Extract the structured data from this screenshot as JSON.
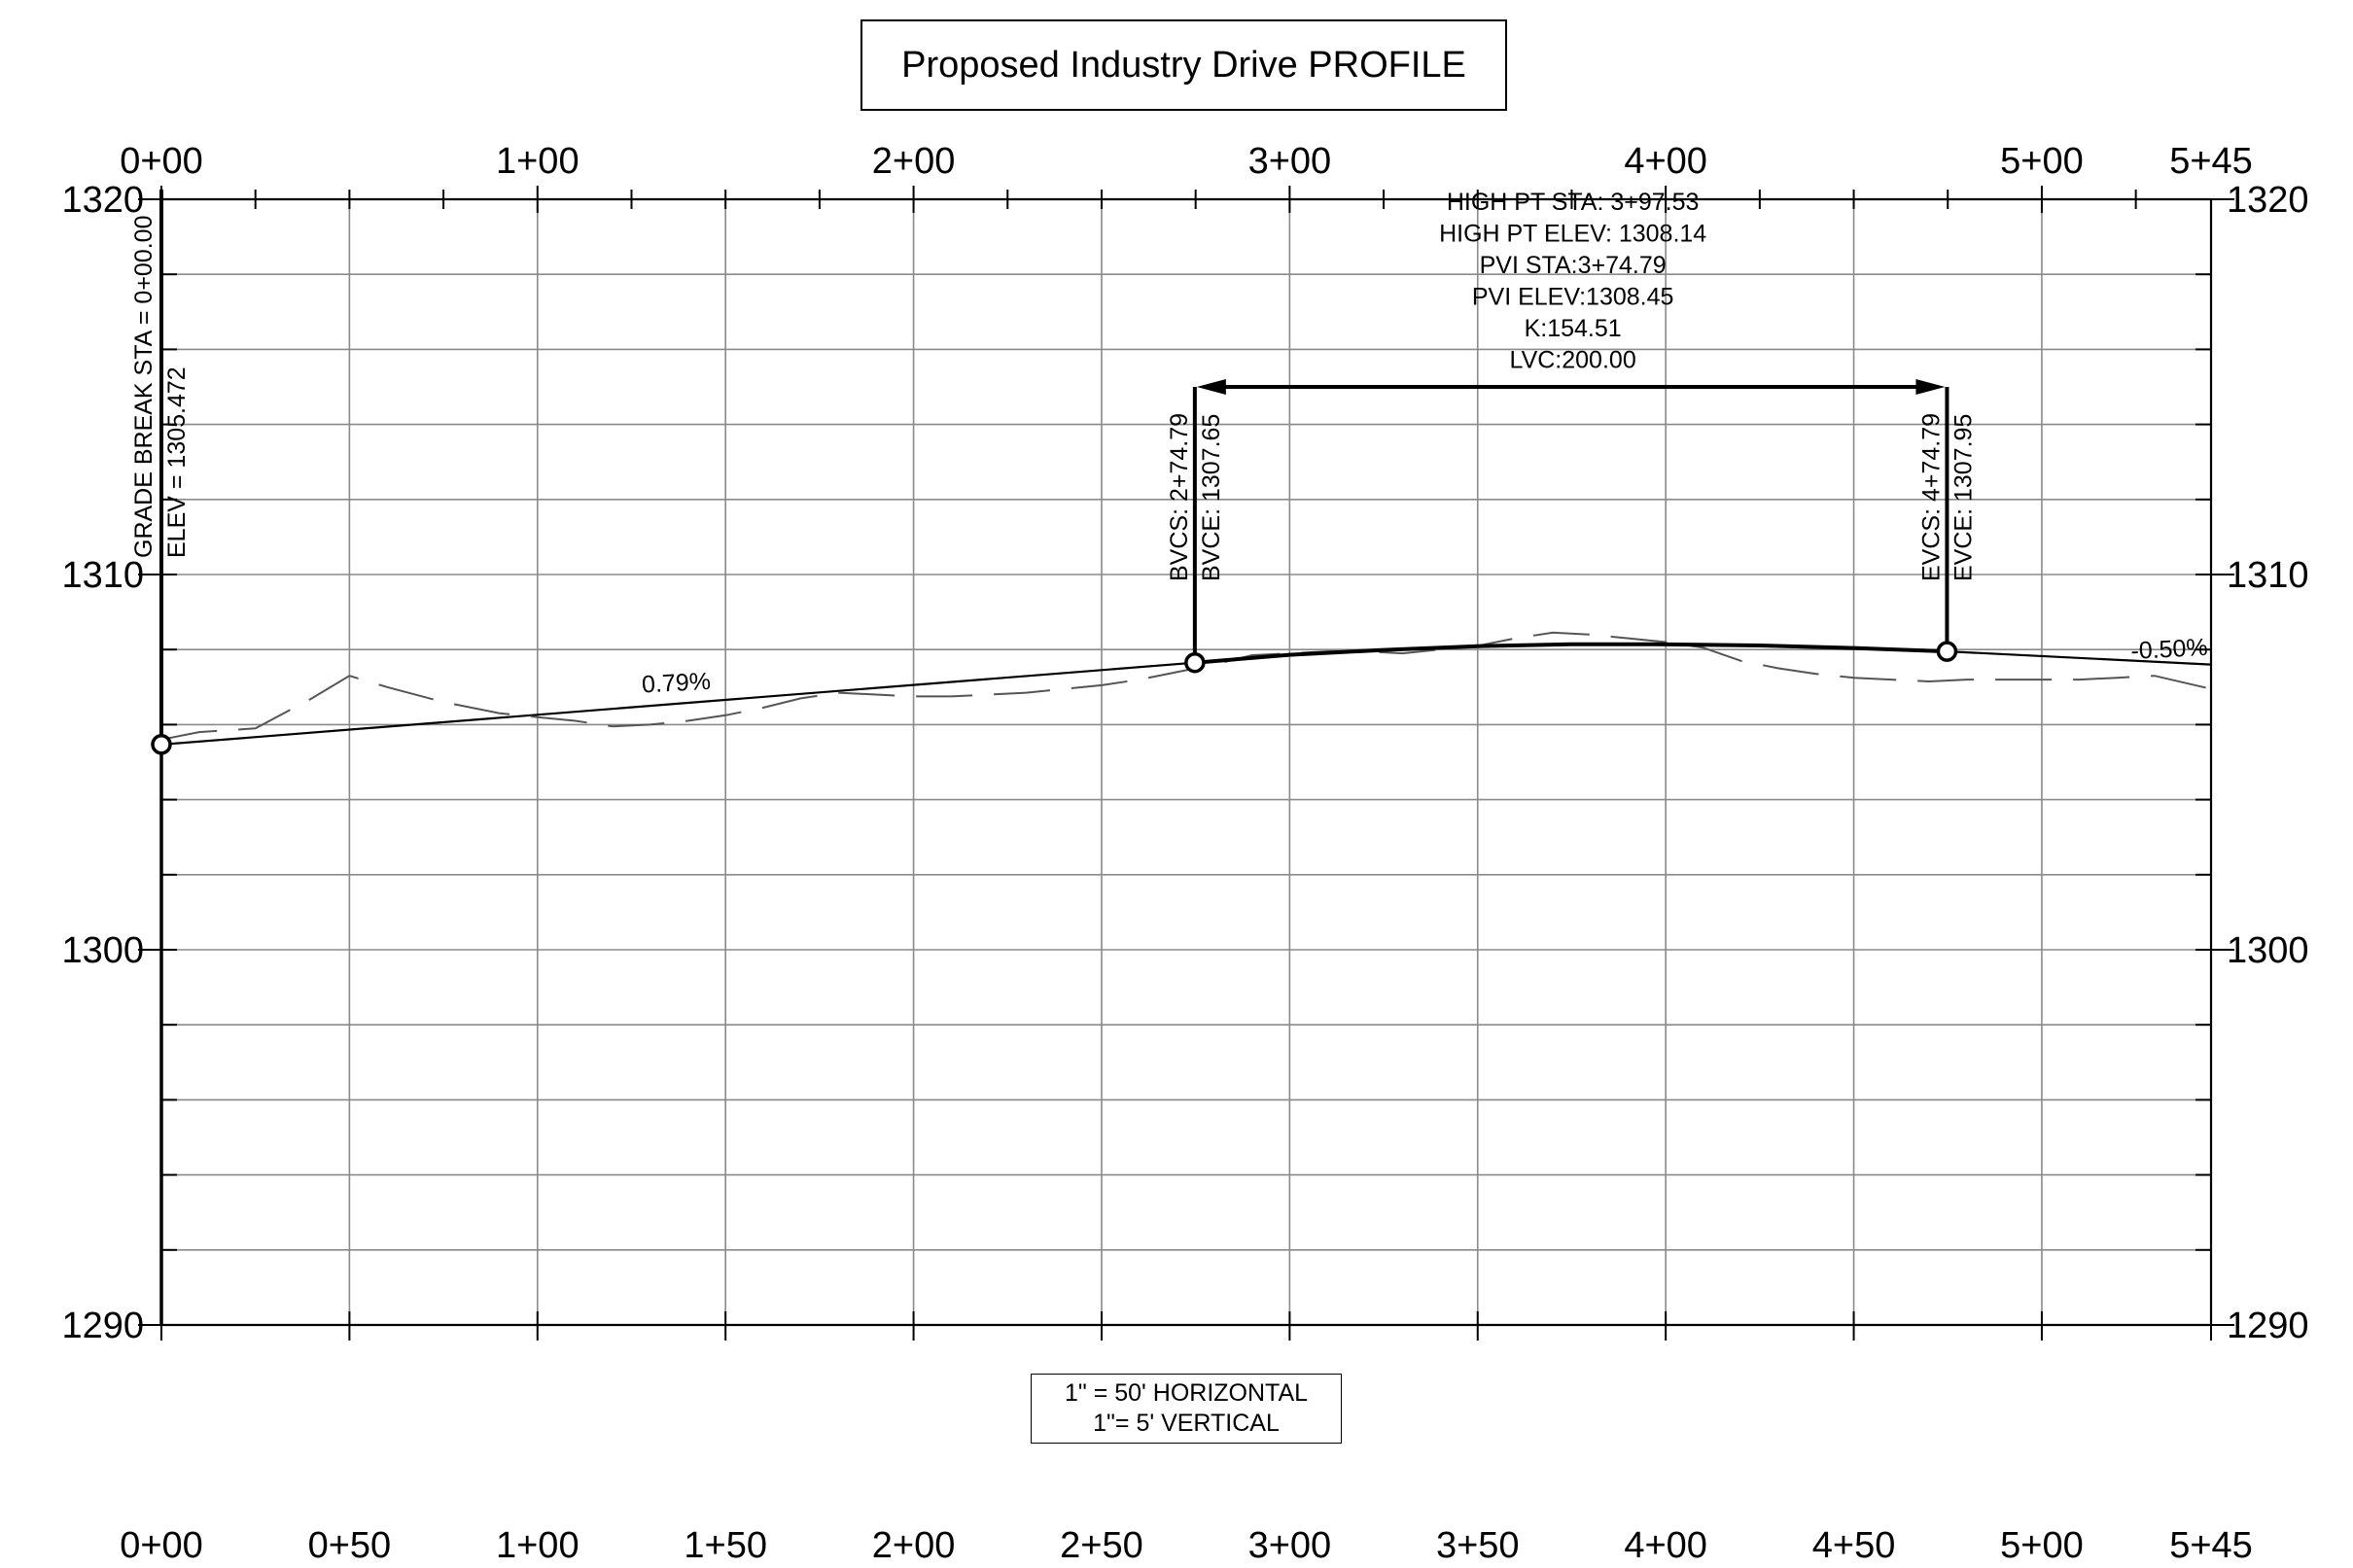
{
  "title": "Proposed Industry Drive PROFILE",
  "scale": {
    "horizontal": "1\" = 50' HORIZONTAL",
    "vertical": "1\"= 5' VERTICAL"
  },
  "chart_data": {
    "type": "line",
    "title": "Proposed Industry Drive PROFILE",
    "x_unit": "station (ft)",
    "y_unit": "elevation (ft)",
    "xlim": [
      0,
      545
    ],
    "ylim": [
      1290,
      1320
    ],
    "grid": true,
    "top_station_labels": [
      {
        "x": 0,
        "label": "0+00"
      },
      {
        "x": 100,
        "label": "1+00"
      },
      {
        "x": 200,
        "label": "2+00"
      },
      {
        "x": 300,
        "label": "3+00"
      },
      {
        "x": 400,
        "label": "4+00"
      },
      {
        "x": 500,
        "label": "5+00"
      },
      {
        "x": 545,
        "label": "5+45"
      }
    ],
    "bottom_station_labels": [
      {
        "x": 0,
        "label": "0+00"
      },
      {
        "x": 50,
        "label": "0+50"
      },
      {
        "x": 100,
        "label": "1+00"
      },
      {
        "x": 150,
        "label": "1+50"
      },
      {
        "x": 200,
        "label": "2+00"
      },
      {
        "x": 250,
        "label": "2+50"
      },
      {
        "x": 300,
        "label": "3+00"
      },
      {
        "x": 350,
        "label": "3+50"
      },
      {
        "x": 400,
        "label": "4+00"
      },
      {
        "x": 450,
        "label": "4+50"
      },
      {
        "x": 500,
        "label": "5+00"
      },
      {
        "x": 545,
        "label": "5+45"
      }
    ],
    "left_elev_labels": [
      {
        "y": 1320,
        "label": "1320"
      },
      {
        "y": 1310,
        "label": "1310"
      },
      {
        "y": 1300,
        "label": "1300"
      },
      {
        "y": 1290,
        "label": "1290"
      }
    ],
    "right_elev_labels": [
      {
        "y": 1320,
        "label": "1320"
      },
      {
        "y": 1310,
        "label": "1310"
      },
      {
        "y": 1300,
        "label": "1300"
      },
      {
        "y": 1290,
        "label": "1290"
      }
    ],
    "series": [
      {
        "name": "",
        "style": "solid",
        "x": [
          0,
          274.79,
          300,
          325,
          350,
          374.79,
          397.53,
          425,
          450,
          474.79,
          545
        ],
        "y": [
          1305.47,
          1307.65,
          1307.86,
          1307.99,
          1308.09,
          1308.14,
          1308.14,
          1308.11,
          1308.04,
          1307.95,
          1307.6
        ]
      },
      {
        "name": "",
        "style": "dashed",
        "x": [
          0,
          10,
          25,
          40,
          50,
          60,
          75,
          90,
          100,
          110,
          120,
          130,
          140,
          150,
          160,
          170,
          180,
          190,
          200,
          210,
          220,
          230,
          240,
          250,
          260,
          270,
          280,
          290,
          300,
          310,
          320,
          330,
          340,
          350,
          360,
          370,
          380,
          390,
          400,
          410,
          420,
          430,
          440,
          450,
          460,
          470,
          480,
          490,
          500,
          510,
          520,
          530,
          545
        ],
        "y": [
          1305.6,
          1305.8,
          1305.9,
          1306.7,
          1307.3,
          1307.0,
          1306.6,
          1306.3,
          1306.2,
          1306.1,
          1305.95,
          1306.0,
          1306.1,
          1306.25,
          1306.45,
          1306.7,
          1306.85,
          1306.8,
          1306.75,
          1306.75,
          1306.8,
          1306.85,
          1306.95,
          1307.05,
          1307.2,
          1307.4,
          1307.6,
          1307.85,
          1307.9,
          1307.95,
          1307.95,
          1307.9,
          1308.0,
          1308.1,
          1308.3,
          1308.45,
          1308.4,
          1308.3,
          1308.2,
          1308.05,
          1307.7,
          1307.5,
          1307.35,
          1307.25,
          1307.2,
          1307.15,
          1307.2,
          1307.2,
          1307.2,
          1307.2,
          1307.25,
          1307.3,
          1306.95
        ]
      }
    ],
    "points": [
      {
        "x": 0,
        "y": 1305.472
      },
      {
        "x": 274.79,
        "y": 1307.65
      },
      {
        "x": 474.79,
        "y": 1307.95
      }
    ],
    "grade_labels": [
      {
        "text": "0.79%",
        "x": 137,
        "y": 1306.9
      },
      {
        "text": "-0.50%",
        "x": 534,
        "y": 1307.8
      }
    ],
    "vertical_curve": {
      "lvc_start": 274.79,
      "lvc_end": 474.79,
      "lvc_y": 1315.0,
      "info": [
        "HIGH PT STA: 3+97.53",
        "HIGH PT ELEV: 1308.14",
        "PVI STA:3+74.79",
        "PVI ELEV:1308.45",
        "K:154.51",
        "LVC:200.00"
      ],
      "bvcs": "BVCS: 2+74.79",
      "bvce": "BVCE: 1307.65",
      "evcs": "EVCS: 4+74.79",
      "evce": "EVCE: 1307.95"
    },
    "grade_break": {
      "sta": "GRADE BREAK STA = 0+00.00",
      "elev": "ELEV =  1305.472"
    }
  }
}
